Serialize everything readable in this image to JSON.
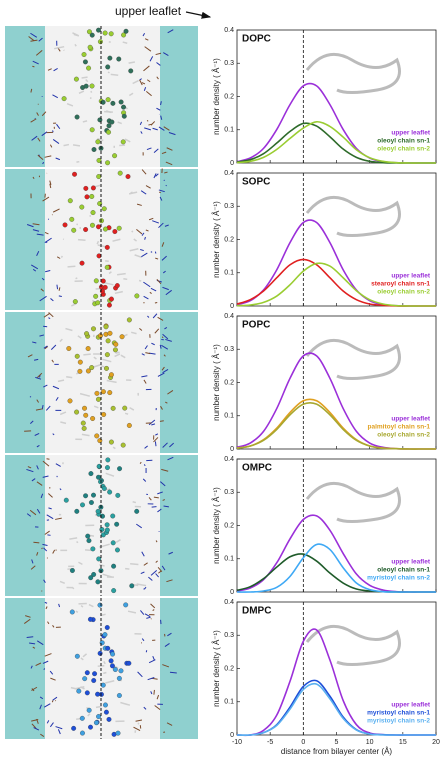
{
  "header": {
    "annotation": "upper leaflet"
  },
  "chart_data": [
    {
      "type": "line",
      "title": "DOPC",
      "ylabel": "number density ( Å⁻¹)",
      "xlim": [
        -10,
        20
      ],
      "ylim": [
        0,
        0.4
      ],
      "xticks": [
        -10,
        -5,
        0,
        5,
        10,
        15,
        20
      ],
      "yticks": [
        0,
        0.1,
        0.2,
        0.3,
        0.4
      ],
      "vline": 0,
      "legend": "lower right",
      "x": [
        -10,
        -8,
        -6,
        -4,
        -2,
        0,
        2,
        4,
        6,
        8,
        10,
        12,
        14,
        16,
        18,
        20
      ],
      "series": [
        {
          "name": "upper leaflet",
          "color": "#9b30d9",
          "values": [
            0.004,
            0.015,
            0.044,
            0.101,
            0.176,
            0.232,
            0.232,
            0.176,
            0.101,
            0.044,
            0.015,
            0.004,
            0.001,
            0,
            0,
            0
          ]
        },
        {
          "name": "oleoyl chain sn-1",
          "color": "#2e6b2a",
          "values": [
            0.003,
            0.01,
            0.028,
            0.06,
            0.095,
            0.119,
            0.111,
            0.079,
            0.042,
            0.017,
            0.005,
            0.001,
            0,
            0,
            0,
            0
          ]
        },
        {
          "name": "oleoyl chain sn-2",
          "color": "#9acd32",
          "values": [
            0.001,
            0.005,
            0.017,
            0.041,
            0.074,
            0.105,
            0.124,
            0.11,
            0.078,
            0.04,
            0.016,
            0.005,
            0.001,
            0,
            0,
            0
          ]
        }
      ]
    },
    {
      "type": "line",
      "title": "SOPC",
      "ylabel": "number density ( Å⁻¹)",
      "xlim": [
        -10,
        20
      ],
      "ylim": [
        0,
        0.4
      ],
      "xticks": [
        -10,
        -5,
        0,
        5,
        10,
        15,
        20
      ],
      "yticks": [
        0,
        0.1,
        0.2,
        0.3,
        0.4
      ],
      "vline": 0,
      "legend": "lower right",
      "x": [
        -10,
        -8,
        -6,
        -4,
        -2,
        0,
        2,
        4,
        6,
        8,
        10,
        12,
        14,
        16,
        18,
        20
      ],
      "series": [
        {
          "name": "upper leaflet",
          "color": "#9b30d9",
          "values": [
            0.004,
            0.016,
            0.048,
            0.109,
            0.191,
            0.251,
            0.251,
            0.191,
            0.109,
            0.048,
            0.016,
            0.004,
            0.001,
            0,
            0,
            0
          ]
        },
        {
          "name": "stearoyl chain sn-1",
          "color": "#e02020",
          "values": [
            0.006,
            0.019,
            0.045,
            0.085,
            0.124,
            0.14,
            0.124,
            0.085,
            0.045,
            0.019,
            0.006,
            0.002,
            0,
            0,
            0,
            0
          ]
        },
        {
          "name": "oleoyl chain sn-2",
          "color": "#9acd32",
          "values": [
            0.001,
            0.003,
            0.011,
            0.03,
            0.064,
            0.105,
            0.128,
            0.12,
            0.085,
            0.046,
            0.019,
            0.006,
            0.001,
            0,
            0,
            0
          ]
        }
      ]
    },
    {
      "type": "line",
      "title": "POPC",
      "ylabel": "number density ( Å⁻¹)",
      "xlim": [
        -10,
        20
      ],
      "ylim": [
        0,
        0.4
      ],
      "xticks": [
        -10,
        -5,
        0,
        5,
        10,
        15,
        20
      ],
      "yticks": [
        0,
        0.1,
        0.2,
        0.3,
        0.4
      ],
      "vline": 0,
      "legend": "lower right",
      "x": [
        -10,
        -8,
        -6,
        -4,
        -2,
        0,
        2,
        4,
        6,
        8,
        10,
        12,
        14,
        16,
        18,
        20
      ],
      "series": [
        {
          "name": "upper leaflet",
          "color": "#9b30d9",
          "values": [
            0.005,
            0.018,
            0.053,
            0.122,
            0.213,
            0.28,
            0.28,
            0.213,
            0.122,
            0.053,
            0.018,
            0.005,
            0.001,
            0,
            0,
            0
          ]
        },
        {
          "name": "palmitoyl chain sn-1",
          "color": "#e0a020",
          "values": [
            0.003,
            0.009,
            0.028,
            0.063,
            0.11,
            0.145,
            0.145,
            0.11,
            0.063,
            0.028,
            0.009,
            0.003,
            0.001,
            0,
            0,
            0
          ]
        },
        {
          "name": "oleoyl chain sn-2",
          "color": "#a8a830",
          "values": [
            0.002,
            0.009,
            0.026,
            0.059,
            0.103,
            0.135,
            0.135,
            0.103,
            0.059,
            0.026,
            0.009,
            0.002,
            0.001,
            0,
            0,
            0
          ]
        }
      ]
    },
    {
      "type": "line",
      "title": "OMPC",
      "ylabel": "number density ( Å⁻¹)",
      "xlim": [
        -10,
        20
      ],
      "ylim": [
        0,
        0.4
      ],
      "xticks": [
        -10,
        -5,
        0,
        5,
        10,
        15,
        20
      ],
      "yticks": [
        0,
        0.1,
        0.2,
        0.3,
        0.4
      ],
      "vline": 0,
      "legend": "lower right",
      "x": [
        -10,
        -8,
        -6,
        -4,
        -2,
        0,
        2,
        4,
        6,
        8,
        10,
        12,
        14,
        16,
        18,
        20
      ],
      "series": [
        {
          "name": "upper leaflet",
          "color": "#9b30d9",
          "values": [
            0.003,
            0.012,
            0.037,
            0.088,
            0.16,
            0.218,
            0.229,
            0.186,
            0.116,
            0.054,
            0.02,
            0.006,
            0.001,
            0,
            0,
            0
          ]
        },
        {
          "name": "oleoyl chain sn-1",
          "color": "#1f5b2a",
          "values": [
            0.005,
            0.016,
            0.04,
            0.075,
            0.106,
            0.114,
            0.093,
            0.057,
            0.027,
            0.009,
            0.003,
            0.001,
            0,
            0,
            0,
            0
          ]
        },
        {
          "name": "myristoyl chain sn-2",
          "color": "#3fa9f5",
          "values": [
            0,
            0,
            0.003,
            0.014,
            0.047,
            0.103,
            0.143,
            0.128,
            0.073,
            0.027,
            0.007,
            0.001,
            0,
            0,
            0,
            0
          ]
        }
      ]
    },
    {
      "type": "line",
      "title": "DMPC",
      "ylabel": "number density ( Å⁻¹)",
      "xlabel": "distance from bilayer center (Å)",
      "xlim": [
        -10,
        20
      ],
      "ylim": [
        0,
        0.4
      ],
      "xticks": [
        -10,
        -5,
        0,
        5,
        10,
        15,
        20
      ],
      "yticks": [
        0,
        0.1,
        0.2,
        0.3,
        0.4
      ],
      "vline": 0,
      "legend": "lower right",
      "x": [
        -10,
        -8,
        -6,
        -4,
        -2,
        0,
        2,
        4,
        6,
        8,
        10,
        12,
        14,
        16,
        18,
        20
      ],
      "series": [
        {
          "name": "upper leaflet",
          "color": "#9b30d9",
          "values": [
            0,
            0,
            0.014,
            0.06,
            0.162,
            0.282,
            0.316,
            0.226,
            0.104,
            0.031,
            0.006,
            0.001,
            0,
            0,
            0,
            0
          ]
        },
        {
          "name": "myristoyl chain sn-1",
          "color": "#1e4fd8",
          "values": [
            0,
            0,
            0.007,
            0.031,
            0.084,
            0.146,
            0.163,
            0.117,
            0.054,
            0.016,
            0.003,
            0.001,
            0,
            0,
            0,
            0
          ]
        },
        {
          "name": "myristoyl chain sn-2",
          "color": "#5ab0f0",
          "values": [
            0,
            0,
            0.007,
            0.029,
            0.078,
            0.137,
            0.153,
            0.109,
            0.05,
            0.015,
            0.003,
            0,
            0,
            0,
            0,
            0
          ]
        }
      ]
    }
  ]
}
